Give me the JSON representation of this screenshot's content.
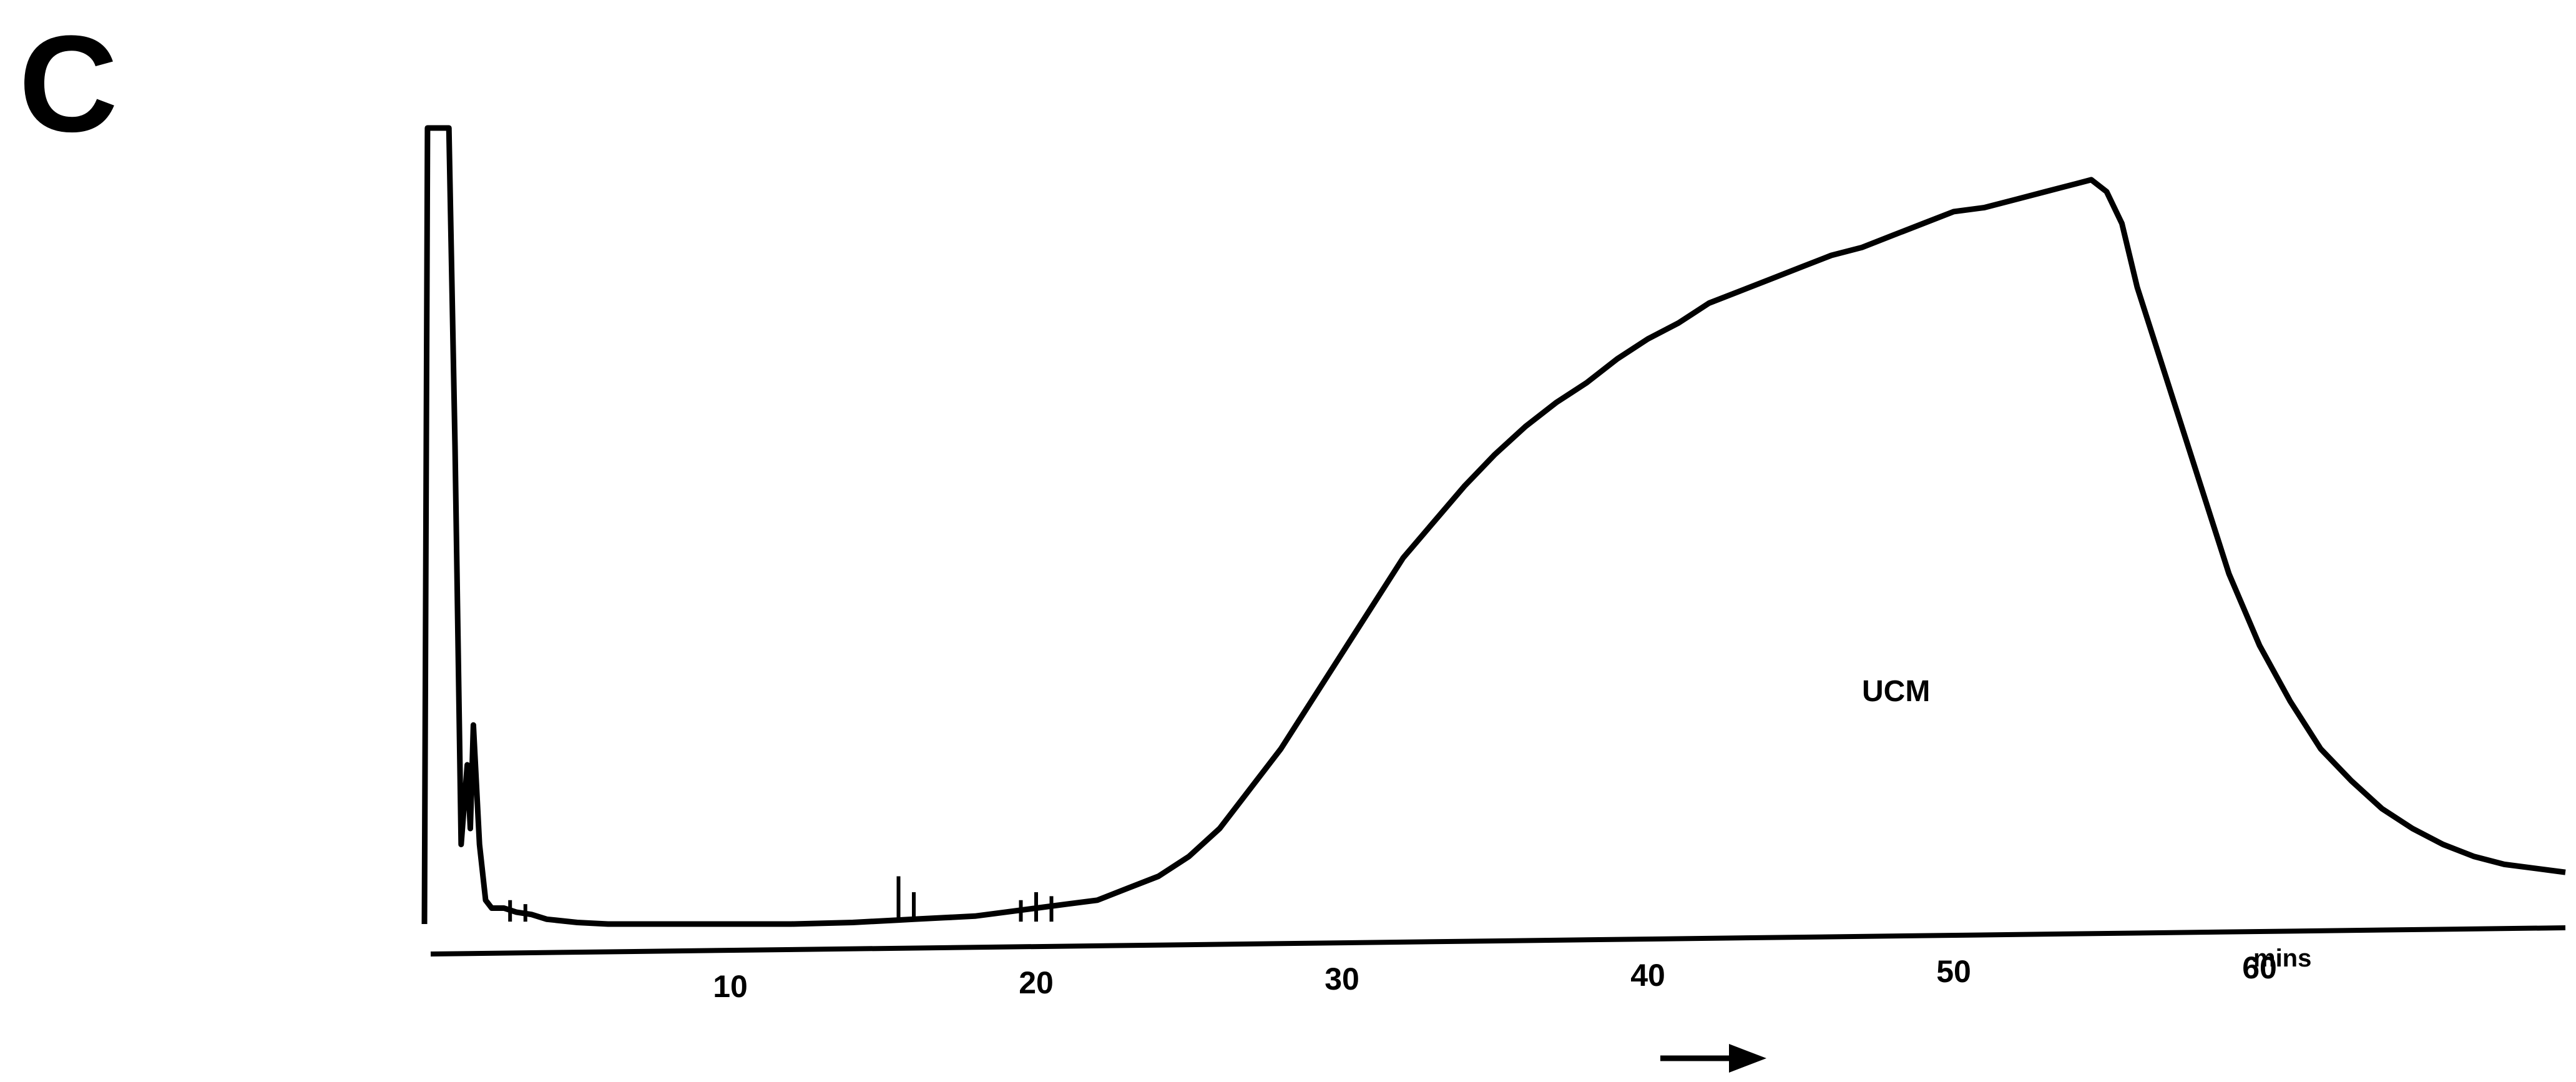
{
  "panel_label": "C",
  "chart_data": {
    "type": "line",
    "title": "",
    "xlabel": "",
    "ylabel": "",
    "x_unit": "mins",
    "xlim": [
      0,
      70
    ],
    "ylim": [
      0,
      100
    ],
    "xticks": [
      10,
      20,
      30,
      40,
      50,
      60
    ],
    "grid": false,
    "legend": "none",
    "annotations": [
      {
        "text": "UCM",
        "x": 47,
        "y": 28
      }
    ],
    "series": [
      {
        "x": [
          0,
          0.1,
          0.3,
          0.5,
          0.6,
          0.8,
          1.0,
          1.2,
          1.4,
          1.5,
          1.6,
          1.8,
          2.0,
          2.2,
          2.6,
          3.0,
          3.5,
          4.0,
          5.0,
          6.0,
          8.0,
          10.0,
          12.0,
          14.0,
          15.5,
          16.0,
          17.0,
          18.0,
          19.0,
          20.0,
          21.0,
          22.0,
          23.0,
          24.0,
          25.0,
          26.0,
          27.0,
          28.0,
          29.0,
          30.0,
          31.0,
          32.0,
          33.0,
          34.0,
          35.0,
          36.0,
          37.0,
          38.0,
          39.0,
          40.0,
          41.0,
          42.0,
          43.0,
          44.0,
          45.0,
          46.0,
          47.0,
          48.0,
          49.0,
          50.0,
          51.0,
          52.0,
          53.0,
          54.0,
          54.5,
          55.0,
          55.5,
          56.0,
          57.0,
          58.0,
          59.0,
          60.0,
          61.0,
          62.0,
          63.0,
          64.0,
          65.0,
          66.0,
          67.0,
          68.0,
          70.0
        ],
        "y": [
          0,
          100,
          100,
          100,
          100,
          100,
          60,
          10,
          20,
          12,
          25,
          10,
          3,
          2,
          2,
          1.5,
          1.2,
          0.6,
          0.2,
          0,
          0,
          0,
          0,
          0.2,
          0.5,
          0.6,
          0.8,
          1,
          1.5,
          2,
          2.5,
          3,
          4.5,
          6,
          8.5,
          12,
          17,
          22,
          28,
          34,
          40,
          46,
          50.5,
          55,
          59,
          62.5,
          65.5,
          68,
          71,
          73.5,
          75.5,
          78,
          79.5,
          81,
          82.5,
          84,
          85,
          86.5,
          88,
          89.5,
          90,
          91,
          92,
          93,
          93.5,
          92,
          88,
          80,
          68,
          56,
          44,
          35,
          28,
          22,
          18,
          14.5,
          12,
          10,
          8.5,
          7.5,
          6.5
        ]
      }
    ],
    "spikes": [
      {
        "x": 15.5,
        "y": 6
      },
      {
        "x": 16.0,
        "y": 4
      },
      {
        "x": 19.5,
        "y": 3
      },
      {
        "x": 20.0,
        "y": 4
      },
      {
        "x": 20.5,
        "y": 3.5
      },
      {
        "x": 2.8,
        "y": 3
      },
      {
        "x": 3.3,
        "y": 2.5
      }
    ]
  }
}
